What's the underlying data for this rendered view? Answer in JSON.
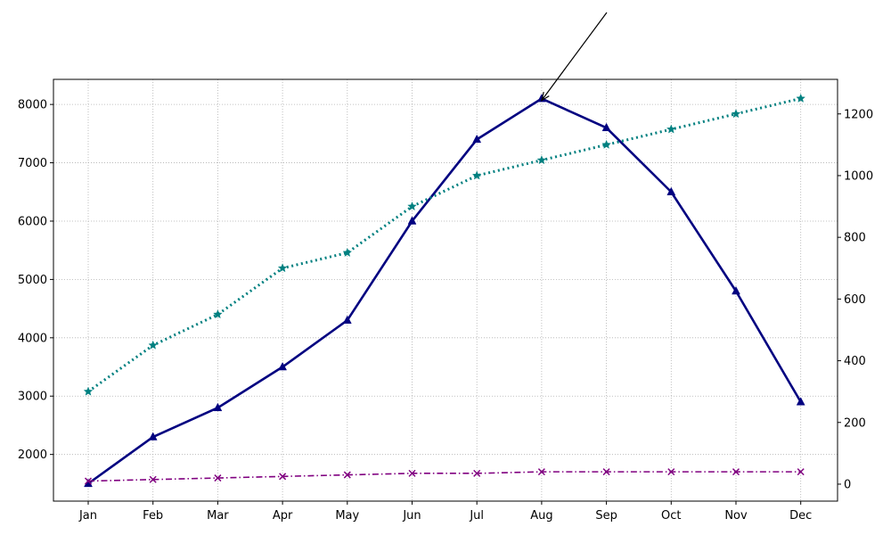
{
  "chart_data": {
    "type": "line",
    "categories": [
      "Jan",
      "Feb",
      "Mar",
      "Apr",
      "May",
      "Jun",
      "Jul",
      "Aug",
      "Sep",
      "Oct",
      "Nov",
      "Dec"
    ],
    "y_left": {
      "ylim": [
        1200,
        8430
      ],
      "ticks": [
        2000,
        3000,
        4000,
        5000,
        6000,
        7000,
        8000
      ]
    },
    "y_right": {
      "ylim": [
        -55,
        1312
      ],
      "ticks": [
        0,
        200,
        400,
        600,
        800,
        1000,
        1200
      ]
    },
    "grid": true,
    "series": [
      {
        "axis": "left",
        "color": "#000080",
        "linestyle": "solid",
        "marker": "triangle",
        "values": [
          1500,
          2300,
          2800,
          3500,
          4300,
          6000,
          7400,
          8100,
          7600,
          6500,
          4800,
          2900
        ]
      },
      {
        "axis": "right",
        "color": "#008080",
        "linestyle": "dotted",
        "marker": "star",
        "values": [
          300,
          450,
          550,
          700,
          750,
          900,
          1000,
          1050,
          1100,
          1150,
          1200,
          1250
        ]
      },
      {
        "axis": "right",
        "color": "#800080",
        "linestyle": "dashdot",
        "marker": "x",
        "values": [
          10,
          15,
          20,
          25,
          30,
          35,
          35,
          40,
          40,
          40,
          40,
          40
        ]
      }
    ],
    "annotation": {
      "type": "arrow",
      "target_category": "Aug",
      "target_value": 8100,
      "axis": "left",
      "text": ""
    }
  }
}
